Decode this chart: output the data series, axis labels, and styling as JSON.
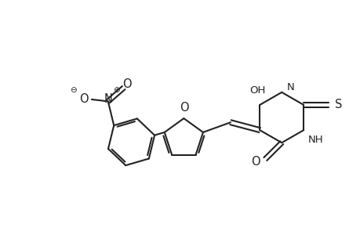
{
  "bg_color": "#ffffff",
  "line_color": "#222222",
  "line_width": 1.5,
  "text_color": "#222222",
  "font_size": 9.5,
  "figsize": [
    4.6,
    3.0
  ],
  "dpi": 100,
  "xlim": [
    0,
    9.2
  ],
  "ylim": [
    0,
    6.0
  ]
}
